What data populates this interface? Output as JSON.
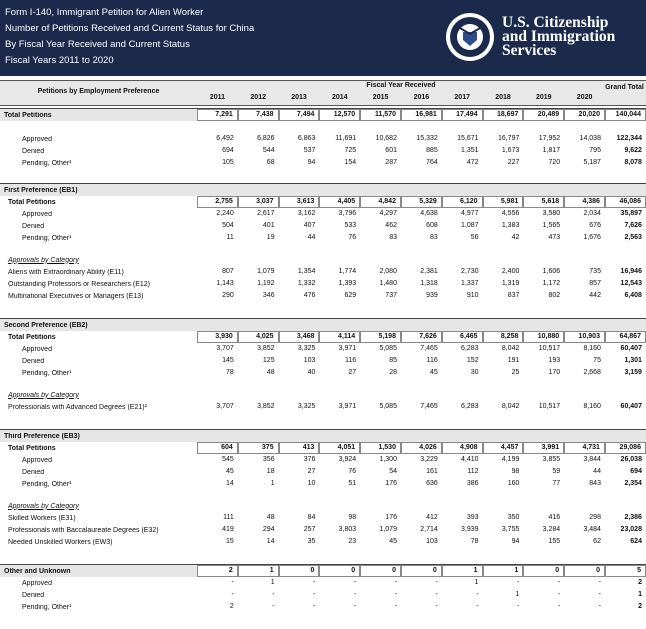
{
  "header": {
    "lines": [
      "Form I-140, Immigrant Petition for Alien Worker",
      "Number of Petitions Received and Current Status for China",
      "By Fiscal Year Received and Current Status",
      "Fiscal Years 2011 to 2020"
    ],
    "agency": [
      "U.S. Citizenship",
      "and Immigration",
      "Services"
    ]
  },
  "table": {
    "label_header": "Petitions by Employment Preference",
    "group_header": "Fiscal Year Received",
    "years": [
      "2011",
      "2012",
      "2013",
      "2014",
      "2015",
      "2016",
      "2017",
      "2018",
      "2019",
      "2020"
    ],
    "total_header": "Grand Total",
    "sections": [
      {
        "title": "Total Petitions",
        "values": [
          "7,291",
          "7,438",
          "7,494",
          "12,570",
          "11,570",
          "16,981",
          "17,494",
          "18,697",
          "20,489",
          "20,020",
          "140,044"
        ],
        "rows": [
          {
            "label": "Approved",
            "values": [
              "6,492",
              "6,826",
              "6,863",
              "11,691",
              "10,682",
              "15,332",
              "15,671",
              "16,797",
              "17,952",
              "14,038",
              "122,344"
            ]
          },
          {
            "label": "Denied",
            "values": [
              "694",
              "544",
              "537",
              "725",
              "601",
              "885",
              "1,351",
              "1,673",
              "1,817",
              "795",
              "9,622"
            ]
          },
          {
            "label": "Pending, Other¹",
            "values": [
              "105",
              "68",
              "94",
              "154",
              "287",
              "764",
              "472",
              "227",
              "720",
              "5,187",
              "8,078"
            ]
          }
        ]
      },
      {
        "title": "First Preference (EB1)",
        "rows": [
          {
            "label": "Total Petitions",
            "values": [
              "2,755",
              "3,037",
              "3,613",
              "4,405",
              "4,842",
              "5,329",
              "6,120",
              "5,981",
              "5,618",
              "4,386",
              "46,086"
            ]
          },
          {
            "label": "Approved",
            "values": [
              "2,240",
              "2,617",
              "3,162",
              "3,796",
              "4,297",
              "4,638",
              "4,977",
              "4,556",
              "3,580",
              "2,034",
              "35,897"
            ]
          },
          {
            "label": "Denied",
            "values": [
              "504",
              "401",
              "407",
              "533",
              "462",
              "608",
              "1,087",
              "1,383",
              "1,565",
              "676",
              "7,626"
            ]
          },
          {
            "label": "Pending, Other¹",
            "values": [
              "11",
              "19",
              "44",
              "76",
              "83",
              "83",
              "56",
              "42",
              "473",
              "1,676",
              "2,563"
            ]
          }
        ],
        "category_title": "Approvals by Category",
        "category_rows": [
          {
            "label": "Aliens with Extraordinary Ability (E11)",
            "values": [
              "807",
              "1,079",
              "1,354",
              "1,774",
              "2,080",
              "2,381",
              "2,730",
              "2,400",
              "1,606",
              "735",
              "16,946"
            ]
          },
          {
            "label": "Outstanding Professors or Researchers (E12)",
            "values": [
              "1,143",
              "1,192",
              "1,332",
              "1,393",
              "1,480",
              "1,318",
              "1,337",
              "1,319",
              "1,172",
              "857",
              "12,543"
            ]
          },
          {
            "label": "Multinational Executives or Managers (E13)",
            "values": [
              "290",
              "346",
              "476",
              "629",
              "737",
              "939",
              "910",
              "837",
              "802",
              "442",
              "6,408"
            ]
          }
        ]
      },
      {
        "title": "Second Preference (EB2)",
        "rows": [
          {
            "label": "Total Petitions",
            "values": [
              "3,930",
              "4,025",
              "3,468",
              "4,114",
              "5,198",
              "7,626",
              "6,465",
              "8,258",
              "10,880",
              "10,903",
              "64,867"
            ]
          },
          {
            "label": "Approved",
            "values": [
              "3,707",
              "3,852",
              "3,325",
              "3,971",
              "5,085",
              "7,465",
              "6,283",
              "8,042",
              "10,517",
              "8,160",
              "60,407"
            ]
          },
          {
            "label": "Denied",
            "values": [
              "145",
              "125",
              "103",
              "116",
              "85",
              "116",
              "152",
              "191",
              "193",
              "75",
              "1,301"
            ]
          },
          {
            "label": "Pending, Other¹",
            "values": [
              "78",
              "48",
              "40",
              "27",
              "28",
              "45",
              "30",
              "25",
              "170",
              "2,668",
              "3,159"
            ]
          }
        ],
        "category_title": "Approvals by Category",
        "category_rows": [
          {
            "label": "Professionals with Advanced Degrees (E21)²",
            "values": [
              "3,707",
              "3,852",
              "3,325",
              "3,971",
              "5,085",
              "7,465",
              "6,283",
              "8,042",
              "10,517",
              "8,160",
              "60,407"
            ]
          }
        ]
      },
      {
        "title": "Third Preference (EB3)",
        "rows": [
          {
            "label": "Total Petitions",
            "values": [
              "604",
              "375",
              "413",
              "4,051",
              "1,530",
              "4,026",
              "4,908",
              "4,457",
              "3,991",
              "4,731",
              "29,086"
            ]
          },
          {
            "label": "Approved",
            "values": [
              "545",
              "356",
              "376",
              "3,924",
              "1,300",
              "3,229",
              "4,410",
              "4,199",
              "3,855",
              "3,844",
              "26,038"
            ]
          },
          {
            "label": "Denied",
            "values": [
              "45",
              "18",
              "27",
              "76",
              "54",
              "161",
              "112",
              "98",
              "59",
              "44",
              "694"
            ]
          },
          {
            "label": "Pending, Other¹",
            "values": [
              "14",
              "1",
              "10",
              "51",
              "176",
              "636",
              "386",
              "160",
              "77",
              "843",
              "2,354"
            ]
          }
        ],
        "category_title": "Approvals by Category",
        "category_rows": [
          {
            "label": "Skilled Workers (E31)",
            "values": [
              "111",
              "48",
              "84",
              "98",
              "176",
              "412",
              "393",
              "350",
              "416",
              "298",
              "2,386"
            ]
          },
          {
            "label": "Professionals with Baccalaureate Degrees (E32)",
            "values": [
              "419",
              "294",
              "257",
              "3,803",
              "1,079",
              "2,714",
              "3,939",
              "3,755",
              "3,284",
              "3,484",
              "23,028"
            ]
          },
          {
            "label": "Needed Unskilled Workers (EW3)",
            "values": [
              "15",
              "14",
              "35",
              "23",
              "45",
              "103",
              "78",
              "94",
              "155",
              "62",
              "624"
            ]
          }
        ]
      },
      {
        "title": "Other and Unknown",
        "values": [
          "2",
          "1",
          "0",
          "0",
          "0",
          "0",
          "1",
          "1",
          "0",
          "0",
          "5"
        ],
        "rows": [
          {
            "label": "Approved",
            "values": [
              "-",
              "1",
              "-",
              "-",
              "-",
              "-",
              "1",
              "-",
              "-",
              "-",
              "2"
            ]
          },
          {
            "label": "Denied",
            "values": [
              "-",
              "-",
              "-",
              "-",
              "-",
              "-",
              "-",
              "1",
              "-",
              "-",
              "1"
            ]
          },
          {
            "label": "Pending, Other¹",
            "values": [
              "2",
              "-",
              "-",
              "-",
              "-",
              "-",
              "-",
              "-",
              "-",
              "-",
              "2"
            ]
          }
        ]
      }
    ]
  }
}
